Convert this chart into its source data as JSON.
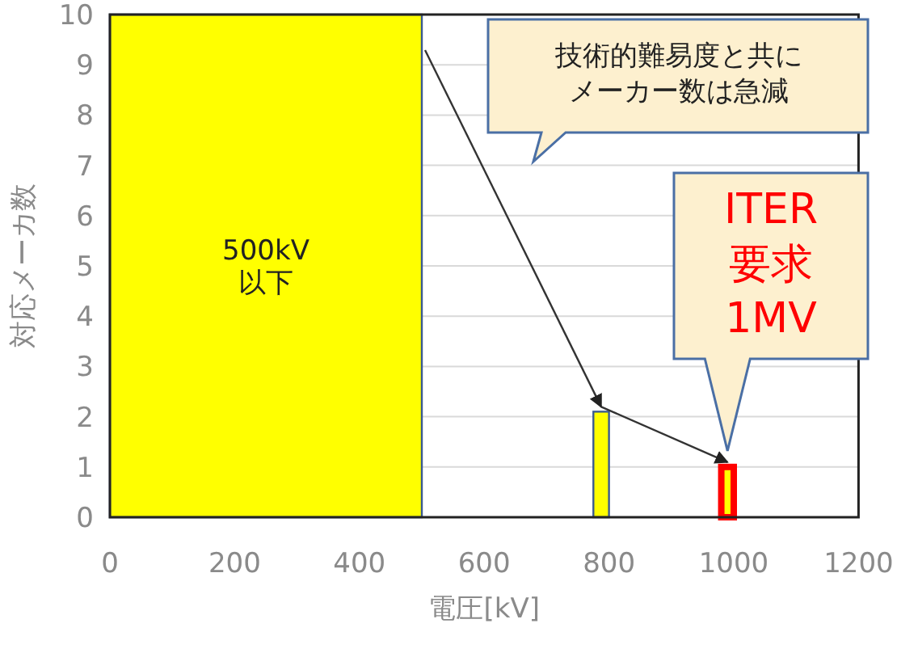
{
  "chart_data": {
    "type": "histogram",
    "xlabel": "電圧[kV]",
    "ylabel": "対応メーカ数",
    "bins": [
      0,
      500,
      775,
      800,
      980,
      1000
    ],
    "values": [
      10,
      0,
      2.1,
      0,
      1
    ],
    "colors": [
      "#ffff00",
      "#ffff00",
      "#ffff00",
      "#ffff00",
      "#ffff00"
    ],
    "xlim": [
      0,
      1200
    ],
    "xticks": [
      0,
      200,
      400,
      600,
      800,
      1000,
      1200
    ],
    "ylim": [
      0,
      10
    ],
    "yticks": [
      0,
      1,
      2,
      3,
      4,
      5,
      6,
      7,
      8,
      9,
      10
    ],
    "grid": "y",
    "annotations": [
      "500kV\n以下",
      "技術的難易度と共にメーカー数は急減",
      {
        "text": "ITER\n要求\n1MV",
        "x": 990,
        "y": 1
      }
    ]
  }
}
